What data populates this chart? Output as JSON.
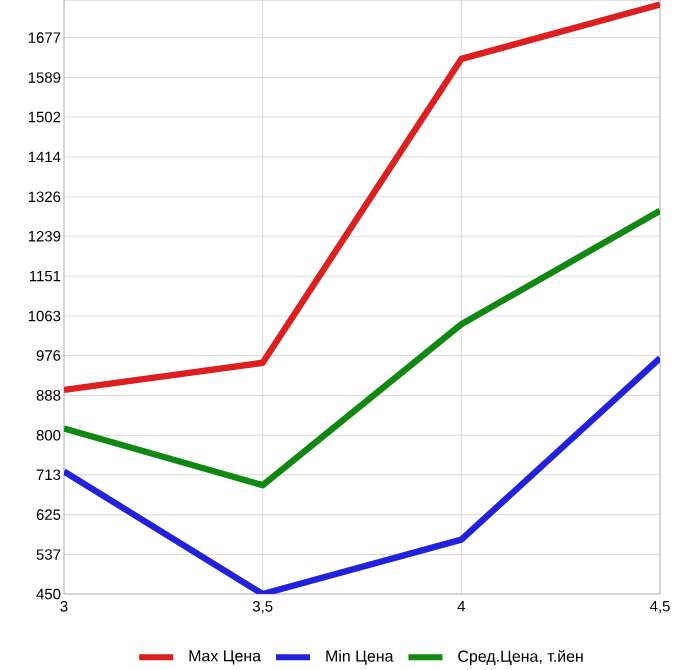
{
  "chart_data": {
    "type": "line",
    "x": [
      3,
      3.5,
      4,
      4.5
    ],
    "series": [
      {
        "name": "Max Цена",
        "color": "#dd1f1f",
        "values": [
          900,
          960,
          1630,
          1750
        ]
      },
      {
        "name": "Min Цена",
        "color": "#2222dd",
        "values": [
          720,
          450,
          570,
          970
        ]
      },
      {
        "name": "Сред.Цена, т.йен",
        "color": "#118811",
        "values": [
          815,
          690,
          1045,
          1295
        ]
      }
    ],
    "xlim": [
      3,
      4.5
    ],
    "ylim": [
      450,
      1760
    ],
    "xticks": [
      3,
      {
        "value": 3.5,
        "label": "3,5"
      },
      4,
      {
        "value": 4.5,
        "label": "4,5"
      }
    ],
    "yticks": [
      450,
      537,
      625,
      713,
      800,
      888,
      976,
      1063,
      1151,
      1239,
      1326,
      1414,
      1502,
      1589,
      1677
    ],
    "grid": true,
    "legend": "bottom",
    "marker": "none",
    "line_style": "solid"
  }
}
